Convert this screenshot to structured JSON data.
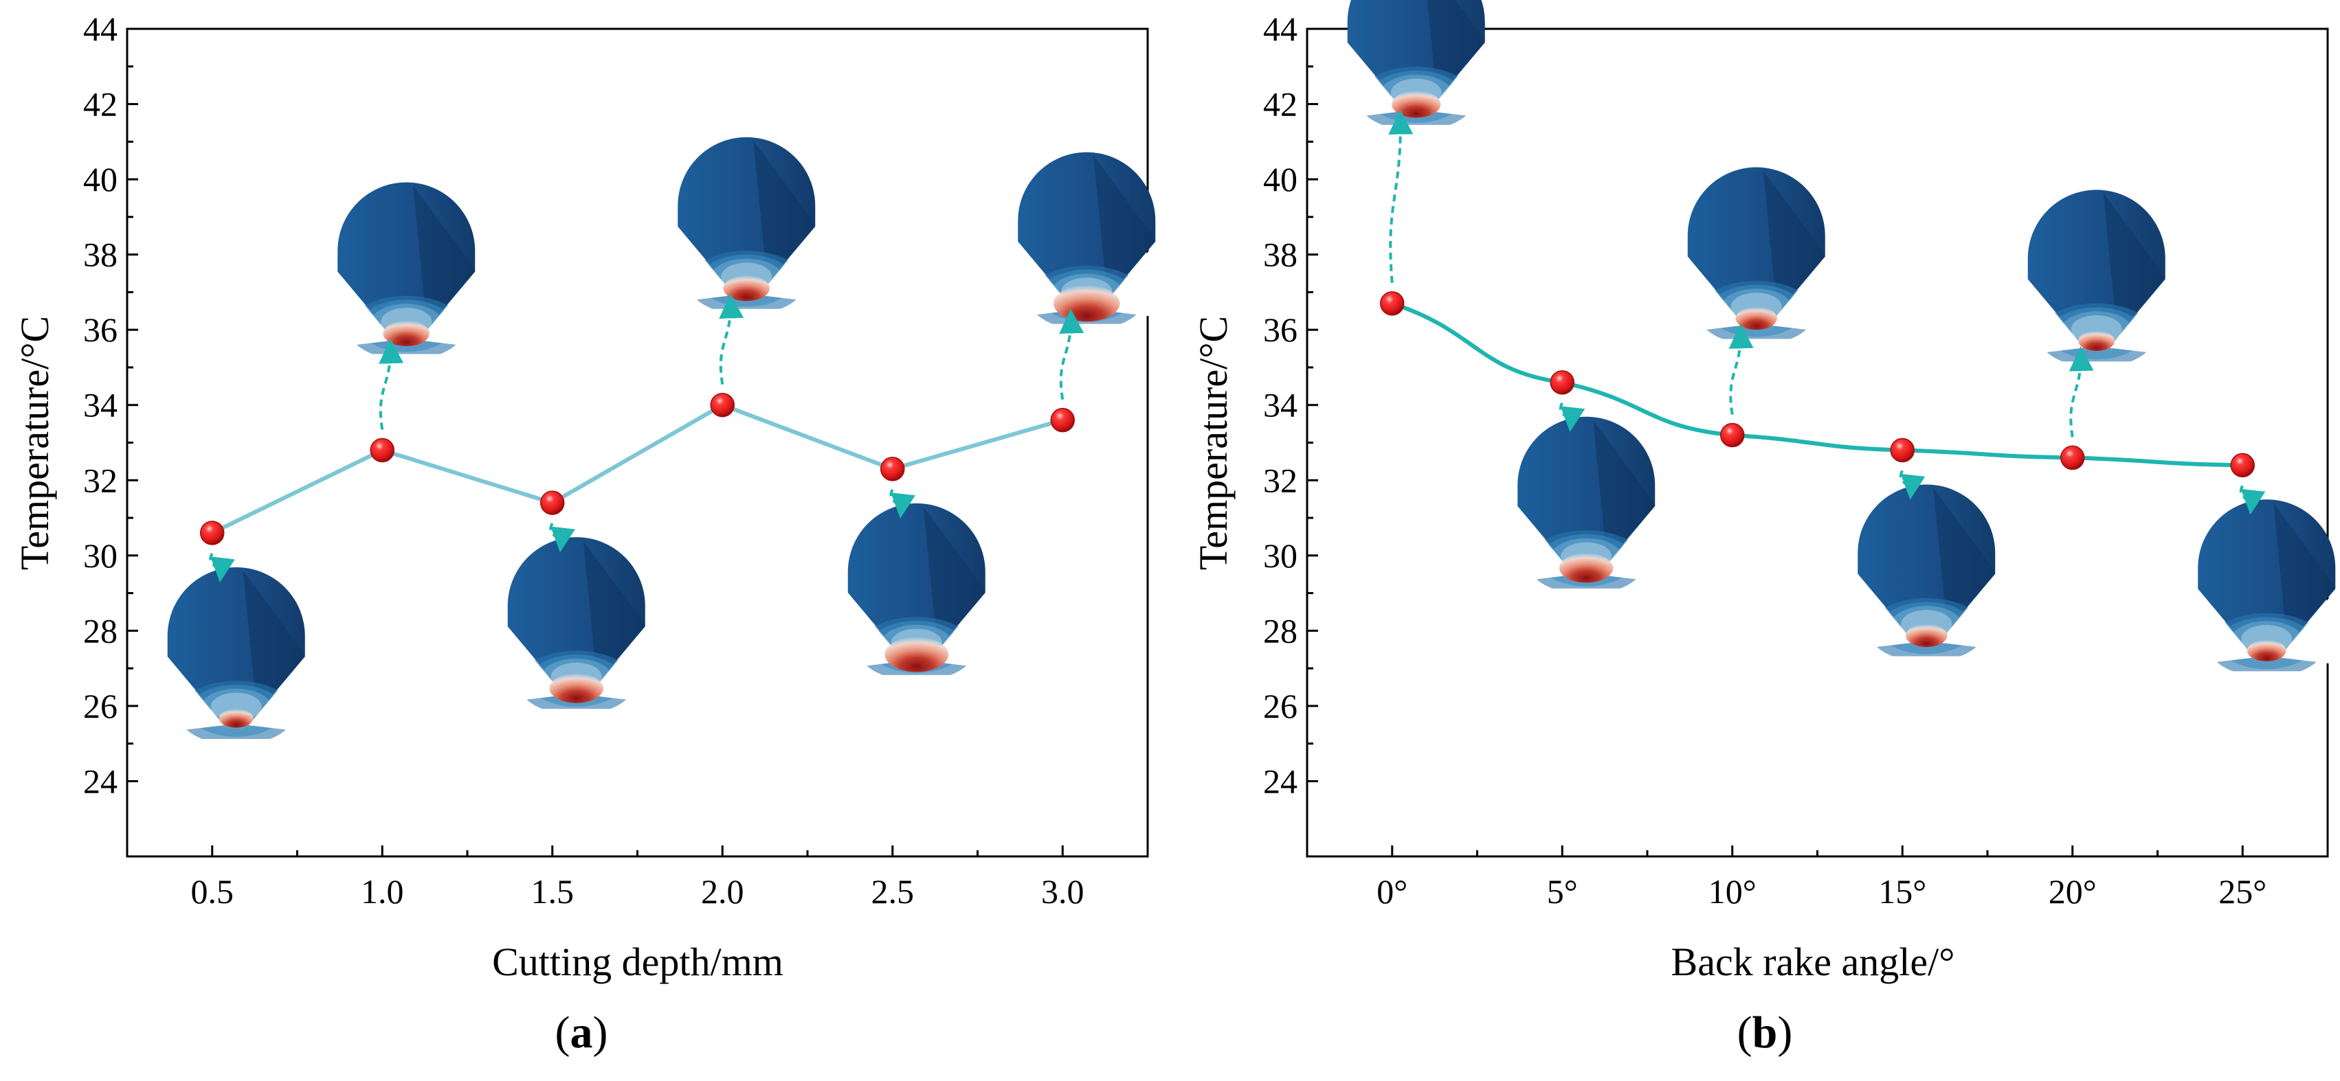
{
  "chart_data": [
    {
      "panel_label": "a",
      "type": "line",
      "xlabel": "Cutting depth/mm",
      "ylabel": "Temperature/°C",
      "xlim": [
        0.25,
        3.25
      ],
      "ylim": [
        22,
        44
      ],
      "xticks": [
        0.5,
        1.0,
        1.5,
        2.0,
        2.5,
        3.0
      ],
      "xtick_labels": [
        "0.5",
        "1.0",
        "1.5",
        "2.0",
        "2.5",
        "3.0"
      ],
      "yticks": [
        24,
        26,
        28,
        30,
        32,
        34,
        36,
        38,
        40,
        42,
        44
      ],
      "ytick_labels": [
        "24",
        "26",
        "28",
        "30",
        "32",
        "34",
        "36",
        "38",
        "40",
        "42",
        "44"
      ],
      "line_color": "#7dc6d6",
      "marker_color": "#e8201f",
      "grid": false,
      "x": [
        0.5,
        1.0,
        1.5,
        2.0,
        2.5,
        3.0
      ],
      "y": [
        30.6,
        32.8,
        31.4,
        34.0,
        32.3,
        33.6
      ],
      "tool_tip_inset_placement": [
        "below",
        "above",
        "below",
        "above",
        "below",
        "above"
      ],
      "tool_tip_hot_spot_size": [
        0.3,
        0.55,
        0.7,
        0.55,
        0.9,
        0.95
      ]
    },
    {
      "panel_label": "b",
      "type": "line",
      "xlabel": "Back rake angle/°",
      "ylabel": "Temperature/°C",
      "xlim": [
        -2.5,
        27.5
      ],
      "ylim": [
        22,
        44
      ],
      "xticks": [
        0,
        5,
        10,
        15,
        20,
        25
      ],
      "xtick_labels": [
        "0°",
        "5°",
        "10°",
        "15°",
        "20°",
        "25°"
      ],
      "yticks": [
        24,
        26,
        28,
        30,
        32,
        34,
        36,
        38,
        40,
        42,
        44
      ],
      "ytick_labels": [
        "24",
        "26",
        "28",
        "30",
        "32",
        "34",
        "36",
        "38",
        "40",
        "42",
        "44"
      ],
      "line_color": "#1fb5b0",
      "marker_color": "#e8201f",
      "grid": false,
      "x": [
        0,
        5,
        10,
        15,
        20,
        25
      ],
      "y": [
        36.7,
        34.6,
        33.2,
        32.8,
        32.6,
        32.4
      ],
      "tool_tip_inset_placement": [
        "above",
        "below",
        "above",
        "below",
        "above",
        "below"
      ],
      "tool_tip_hot_spot_size": [
        0.6,
        0.7,
        0.45,
        0.45,
        0.35,
        0.4
      ]
    }
  ]
}
